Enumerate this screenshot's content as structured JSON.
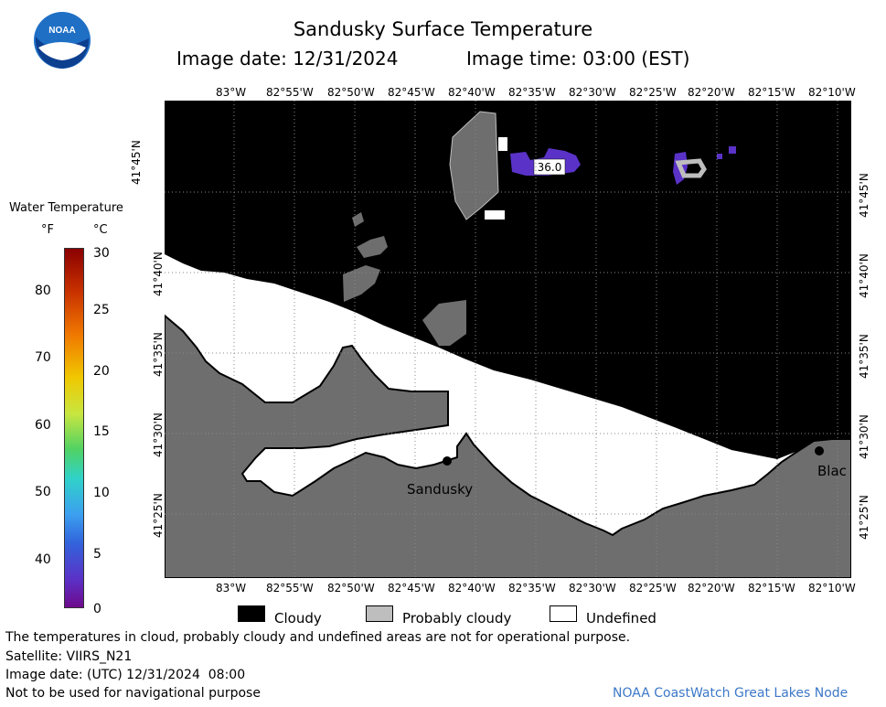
{
  "header": {
    "title": "Sandusky Surface Temperature",
    "date_line": "Image date: 12/31/2024",
    "time_line": "Image time: 03:00 (EST)"
  },
  "logo": {
    "text": "NOAA"
  },
  "colorbar": {
    "title": "Water Temperature",
    "unit_f": "°F",
    "unit_c": "°C",
    "f_ticks": [
      "80",
      "70",
      "60",
      "50",
      "40"
    ],
    "c_ticks": [
      "30",
      "25",
      "20",
      "15",
      "10",
      "5",
      "0"
    ]
  },
  "axes": {
    "lon_ticks": [
      "83°W",
      "82°55'W",
      "82°50'W",
      "82°45'W",
      "82°40'W",
      "82°35'W",
      "82°30'W",
      "82°25'W",
      "82°20'W",
      "82°15'W",
      "82°10'W"
    ],
    "lat_ticks": [
      "41°45'N",
      "41°40'N",
      "41°35'N",
      "41°30'N",
      "41°25'N"
    ]
  },
  "map": {
    "labels": {
      "sandusky": "Sandusky",
      "blac": "Blac",
      "temp_value": "36.0"
    },
    "colors": {
      "cloud": "#000000",
      "probably_cloudy": "#bebebe",
      "undefined": "#ffffff",
      "land": "#6e6e6e",
      "water_36f": "#5a32c8"
    }
  },
  "legend": {
    "cloudy": "Cloudy",
    "probably_cloudy": "Probably cloudy",
    "undefined": "Undefined"
  },
  "footer": {
    "disclaimer": "The temperatures in cloud, probably cloudy and undefined areas are not for operational purpose.",
    "satellite": "Satellite: VIIRS_N21",
    "utc_date": "Image date: (UTC) 12/31/2024  08:00",
    "nav_warning": "Not to be used for navigational purpose",
    "credit": "NOAA CoastWatch Great Lakes Node"
  }
}
